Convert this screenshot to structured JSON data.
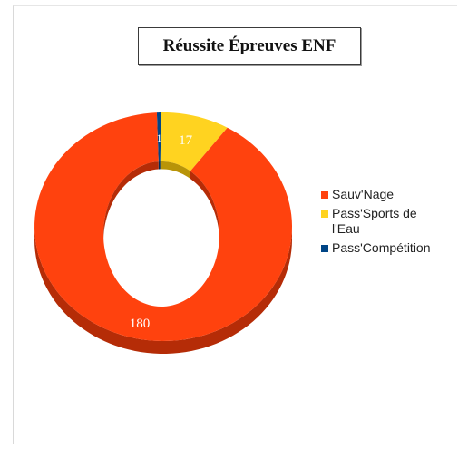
{
  "chart_data": {
    "type": "pie",
    "variant": "3d-donut",
    "title": "Réussite Épreuves ENF",
    "categories": [
      "Sauv'Nage",
      "Pass'Sports de\nl'Eau",
      "Pass'Compétition"
    ],
    "values": [
      180,
      17,
      1
    ],
    "data_labels": [
      "180",
      "17",
      "1"
    ],
    "colors": [
      "#ff420e",
      "#ffd320",
      "#004586"
    ],
    "side_colors": [
      "#b52c07",
      "#b89408",
      "#002c57"
    ],
    "legend_position": "right"
  }
}
